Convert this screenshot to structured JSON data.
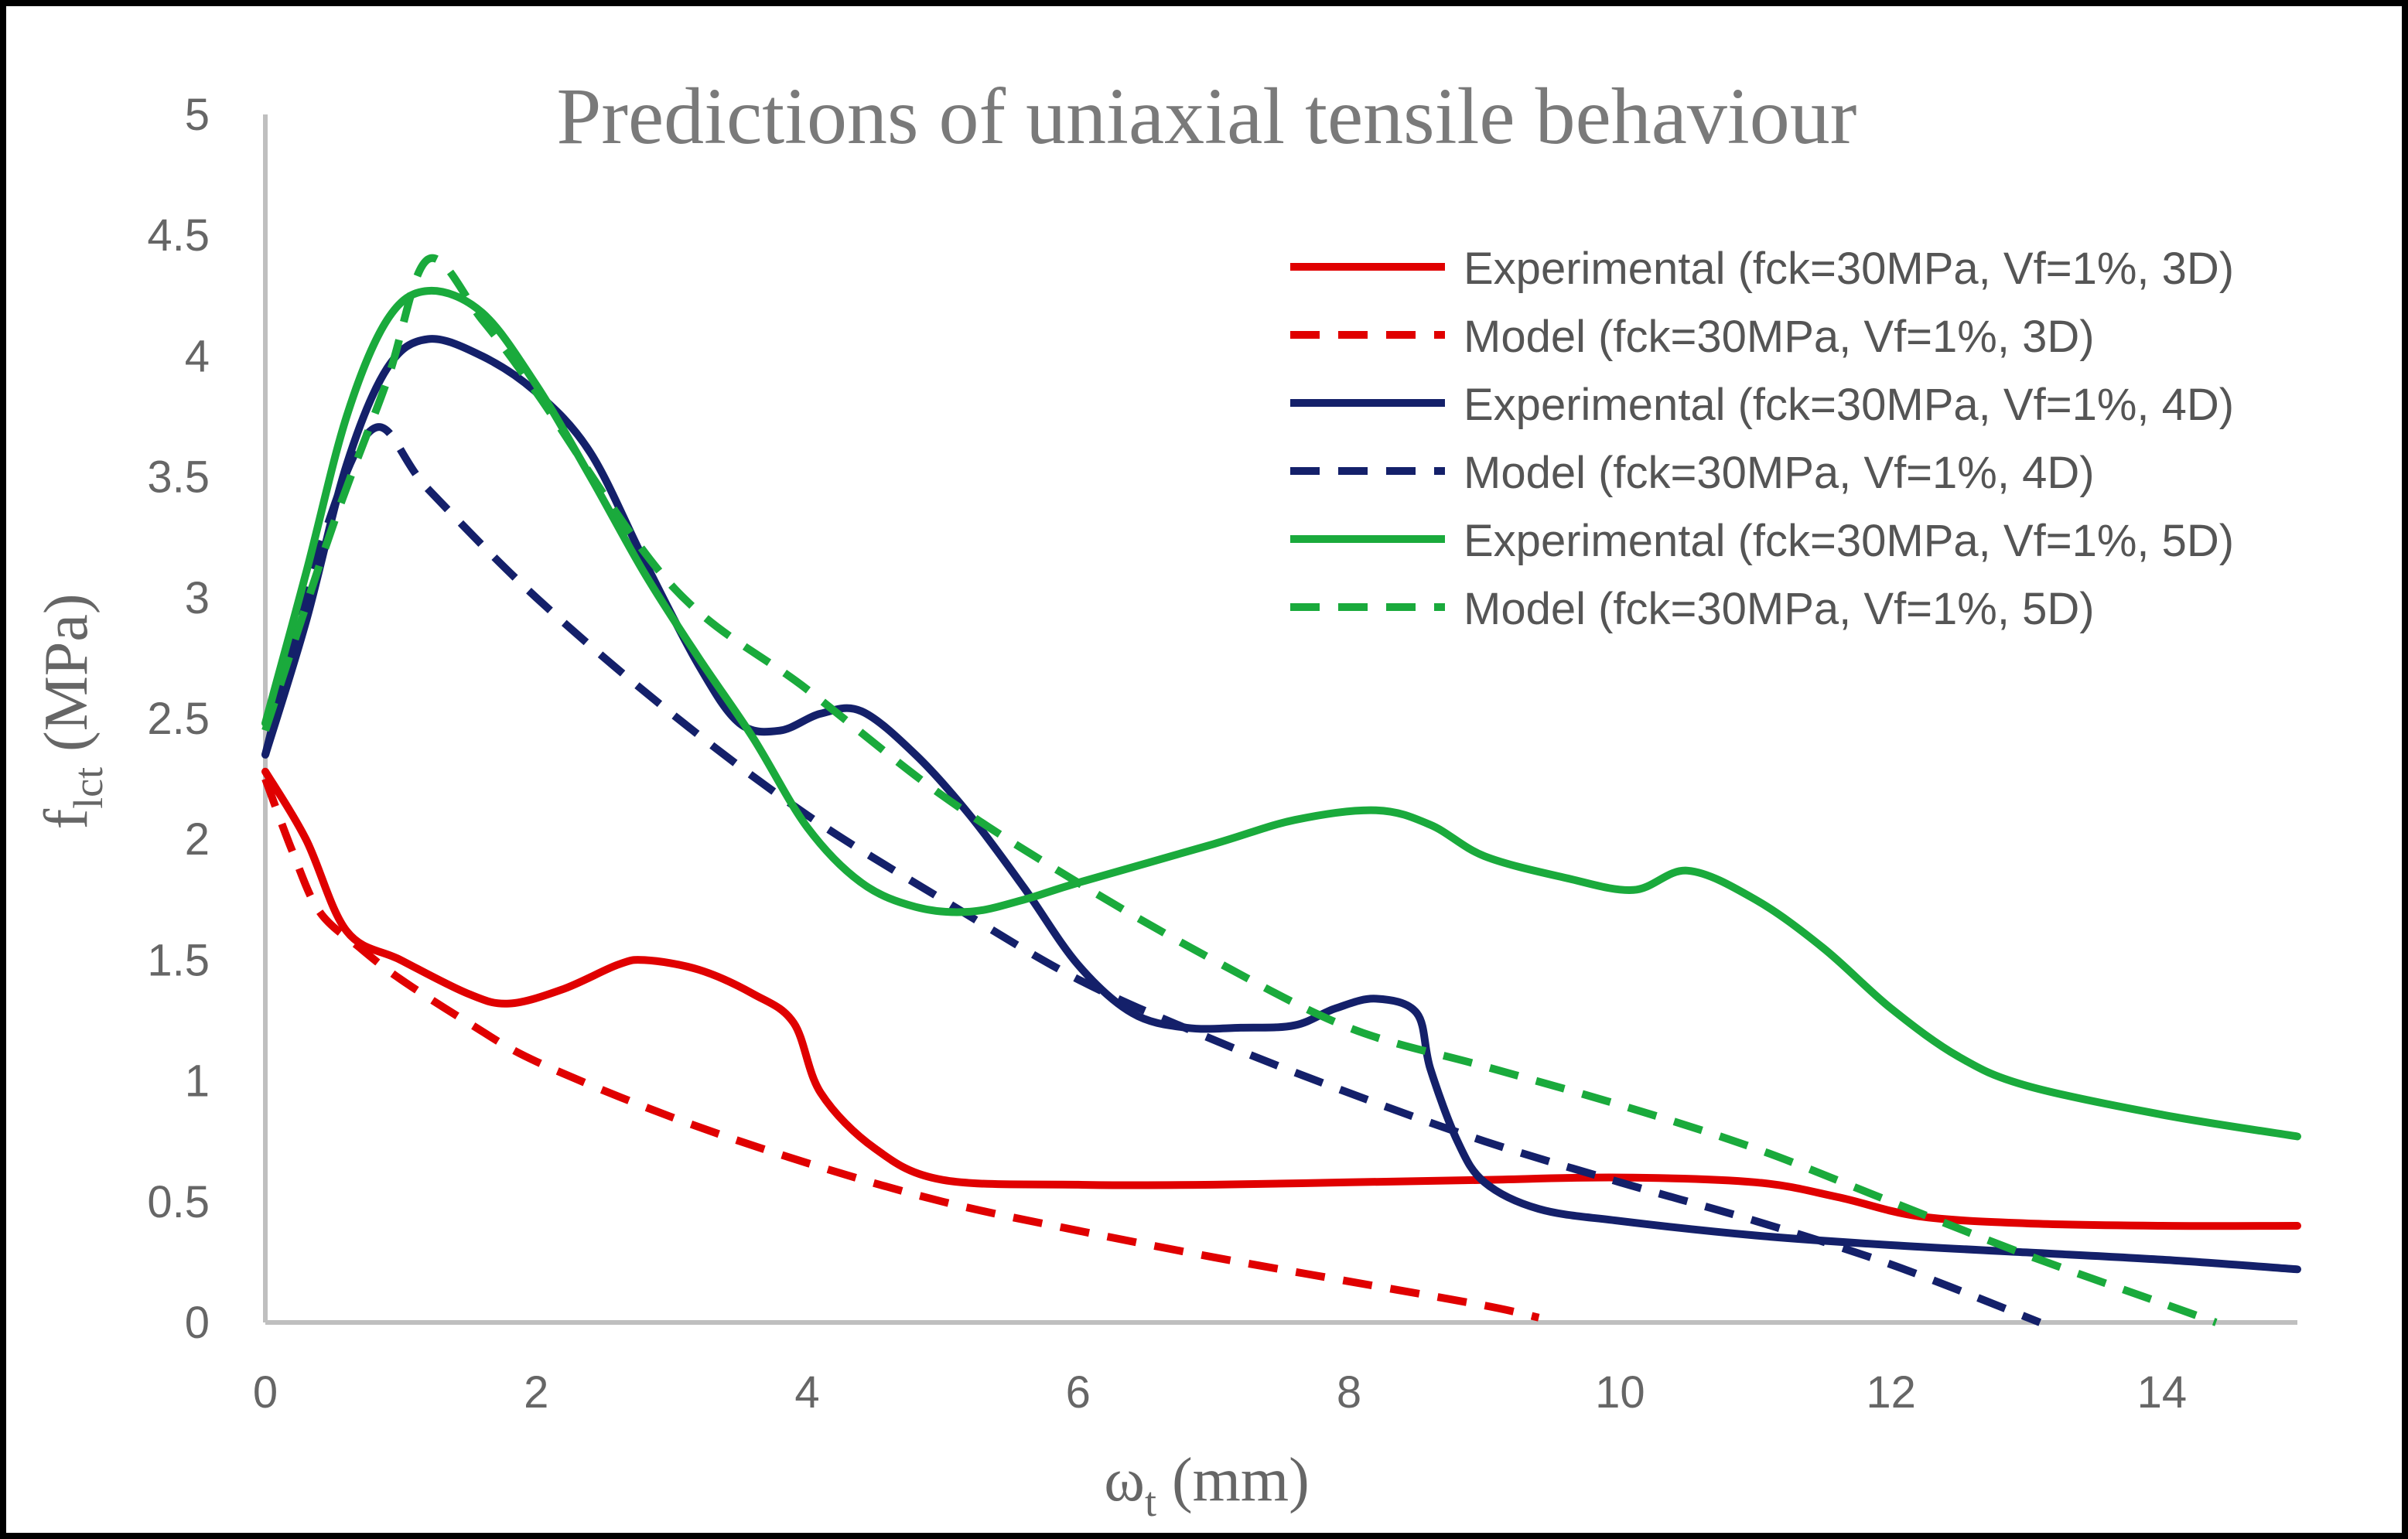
{
  "chart_data": {
    "type": "line",
    "title": "Predictions of uniaxial tensile behaviour",
    "xlabel": {
      "main": "ω",
      "sub": "t",
      "rest": " (mm)"
    },
    "ylabel": {
      "main": "f",
      "sub": "lct",
      "rest": " (MPa)"
    },
    "xlim": [
      0,
      15
    ],
    "ylim": [
      0,
      5
    ],
    "x_ticks": [
      0,
      2,
      4,
      6,
      8,
      10,
      12,
      14
    ],
    "y_ticks": [
      0,
      0.5,
      1,
      1.5,
      2,
      2.5,
      3,
      3.5,
      4,
      4.5,
      5
    ],
    "x_tick_labels": [
      "0",
      "2",
      "4",
      "6",
      "8",
      "10",
      "12",
      "14"
    ],
    "y_tick_labels": [
      "0",
      "0.5",
      "1",
      "1.5",
      "2",
      "2.5",
      "3",
      "3.5",
      "4",
      "4.5",
      "5"
    ],
    "grid": false,
    "legend_position": "top-right",
    "series": [
      {
        "name": "Experimental (fck=30MPa, Vf=1%, 3D)",
        "color": "#e00000",
        "dash": false,
        "points": [
          [
            0,
            2.28
          ],
          [
            0.3,
            2.0
          ],
          [
            0.6,
            1.62
          ],
          [
            1.0,
            1.5
          ],
          [
            1.5,
            1.36
          ],
          [
            1.8,
            1.32
          ],
          [
            2.2,
            1.38
          ],
          [
            2.6,
            1.48
          ],
          [
            2.8,
            1.5
          ],
          [
            3.2,
            1.46
          ],
          [
            3.6,
            1.36
          ],
          [
            3.9,
            1.24
          ],
          [
            4.1,
            0.95
          ],
          [
            4.5,
            0.72
          ],
          [
            5.0,
            0.59
          ],
          [
            6.0,
            0.57
          ],
          [
            7.0,
            0.57
          ],
          [
            8.0,
            0.58
          ],
          [
            9.0,
            0.59
          ],
          [
            10.0,
            0.6
          ],
          [
            11.0,
            0.58
          ],
          [
            11.6,
            0.52
          ],
          [
            12.2,
            0.44
          ],
          [
            13.0,
            0.41
          ],
          [
            14.0,
            0.4
          ],
          [
            15.0,
            0.4
          ]
        ]
      },
      {
        "name": "Model (fck=30MPa, Vf=1%, 3D)",
        "color": "#e00000",
        "dash": true,
        "points": [
          [
            0,
            2.25
          ],
          [
            0.2,
            1.95
          ],
          [
            0.4,
            1.7
          ],
          [
            0.7,
            1.55
          ],
          [
            1.0,
            1.42
          ],
          [
            1.5,
            1.24
          ],
          [
            2.0,
            1.08
          ],
          [
            3.0,
            0.85
          ],
          [
            4.0,
            0.66
          ],
          [
            5.0,
            0.5
          ],
          [
            6.0,
            0.38
          ],
          [
            7.0,
            0.27
          ],
          [
            8.0,
            0.17
          ],
          [
            9.0,
            0.07
          ],
          [
            9.4,
            0.02
          ]
        ]
      },
      {
        "name": "Experimental (fck=30MPa, Vf=1%, 4D)",
        "color": "#14206a",
        "dash": false,
        "points": [
          [
            0,
            2.35
          ],
          [
            0.3,
            2.9
          ],
          [
            0.6,
            3.55
          ],
          [
            0.9,
            3.95
          ],
          [
            1.2,
            4.07
          ],
          [
            1.6,
            4.0
          ],
          [
            2.0,
            3.85
          ],
          [
            2.4,
            3.6
          ],
          [
            2.8,
            3.15
          ],
          [
            3.2,
            2.72
          ],
          [
            3.5,
            2.48
          ],
          [
            3.8,
            2.45
          ],
          [
            4.1,
            2.52
          ],
          [
            4.4,
            2.53
          ],
          [
            4.8,
            2.35
          ],
          [
            5.2,
            2.1
          ],
          [
            5.6,
            1.8
          ],
          [
            6.0,
            1.48
          ],
          [
            6.4,
            1.28
          ],
          [
            6.8,
            1.22
          ],
          [
            7.2,
            1.22
          ],
          [
            7.6,
            1.23
          ],
          [
            7.9,
            1.3
          ],
          [
            8.2,
            1.34
          ],
          [
            8.5,
            1.28
          ],
          [
            8.6,
            1.05
          ],
          [
            8.8,
            0.75
          ],
          [
            9.0,
            0.58
          ],
          [
            9.4,
            0.47
          ],
          [
            10.0,
            0.42
          ],
          [
            11.0,
            0.36
          ],
          [
            12.0,
            0.32
          ],
          [
            13.0,
            0.29
          ],
          [
            14.0,
            0.26
          ],
          [
            15.0,
            0.22
          ]
        ]
      },
      {
        "name": "Model (fck=30MPa, Vf=1%, 4D)",
        "color": "#14206a",
        "dash": true,
        "points": [
          [
            0,
            2.35
          ],
          [
            0.4,
            3.2
          ],
          [
            0.8,
            3.7
          ],
          [
            1.2,
            3.45
          ],
          [
            2.0,
            3.0
          ],
          [
            3.0,
            2.52
          ],
          [
            4.0,
            2.1
          ],
          [
            5.0,
            1.75
          ],
          [
            6.0,
            1.42
          ],
          [
            7.0,
            1.17
          ],
          [
            8.0,
            0.95
          ],
          [
            9.0,
            0.75
          ],
          [
            10.0,
            0.58
          ],
          [
            11.0,
            0.42
          ],
          [
            12.0,
            0.24
          ],
          [
            13.1,
            0.0
          ]
        ]
      },
      {
        "name": "Experimental (fck=30MPa, Vf=1%, 5D)",
        "color": "#1aaa3c",
        "dash": false,
        "points": [
          [
            0,
            2.48
          ],
          [
            0.3,
            3.1
          ],
          [
            0.6,
            3.75
          ],
          [
            0.9,
            4.15
          ],
          [
            1.2,
            4.27
          ],
          [
            1.6,
            4.18
          ],
          [
            2.0,
            3.88
          ],
          [
            2.4,
            3.5
          ],
          [
            2.8,
            3.1
          ],
          [
            3.2,
            2.75
          ],
          [
            3.6,
            2.42
          ],
          [
            4.0,
            2.05
          ],
          [
            4.4,
            1.82
          ],
          [
            4.8,
            1.72
          ],
          [
            5.2,
            1.7
          ],
          [
            5.6,
            1.75
          ],
          [
            6.0,
            1.82
          ],
          [
            7.0,
            1.98
          ],
          [
            7.6,
            2.08
          ],
          [
            8.2,
            2.12
          ],
          [
            8.6,
            2.06
          ],
          [
            9.0,
            1.93
          ],
          [
            9.6,
            1.84
          ],
          [
            10.1,
            1.79
          ],
          [
            10.5,
            1.87
          ],
          [
            11.0,
            1.75
          ],
          [
            11.5,
            1.55
          ],
          [
            12.0,
            1.3
          ],
          [
            12.5,
            1.1
          ],
          [
            13.0,
            0.98
          ],
          [
            14.0,
            0.86
          ],
          [
            15.0,
            0.77
          ]
        ]
      },
      {
        "name": "Model (fck=30MPa, Vf=1%, 5D)",
        "color": "#1aaa3c",
        "dash": true,
        "points": [
          [
            0,
            2.45
          ],
          [
            0.5,
            3.3
          ],
          [
            0.9,
            3.9
          ],
          [
            1.2,
            4.4
          ],
          [
            1.6,
            4.15
          ],
          [
            2.0,
            3.85
          ],
          [
            3.0,
            3.05
          ],
          [
            4.0,
            2.62
          ],
          [
            5.0,
            2.18
          ],
          [
            6.0,
            1.82
          ],
          [
            7.0,
            1.5
          ],
          [
            8.0,
            1.22
          ],
          [
            9.0,
            1.06
          ],
          [
            10.0,
            0.9
          ],
          [
            11.0,
            0.72
          ],
          [
            12.0,
            0.5
          ],
          [
            13.0,
            0.28
          ],
          [
            14.0,
            0.08
          ],
          [
            14.4,
            0.0
          ]
        ]
      }
    ]
  }
}
